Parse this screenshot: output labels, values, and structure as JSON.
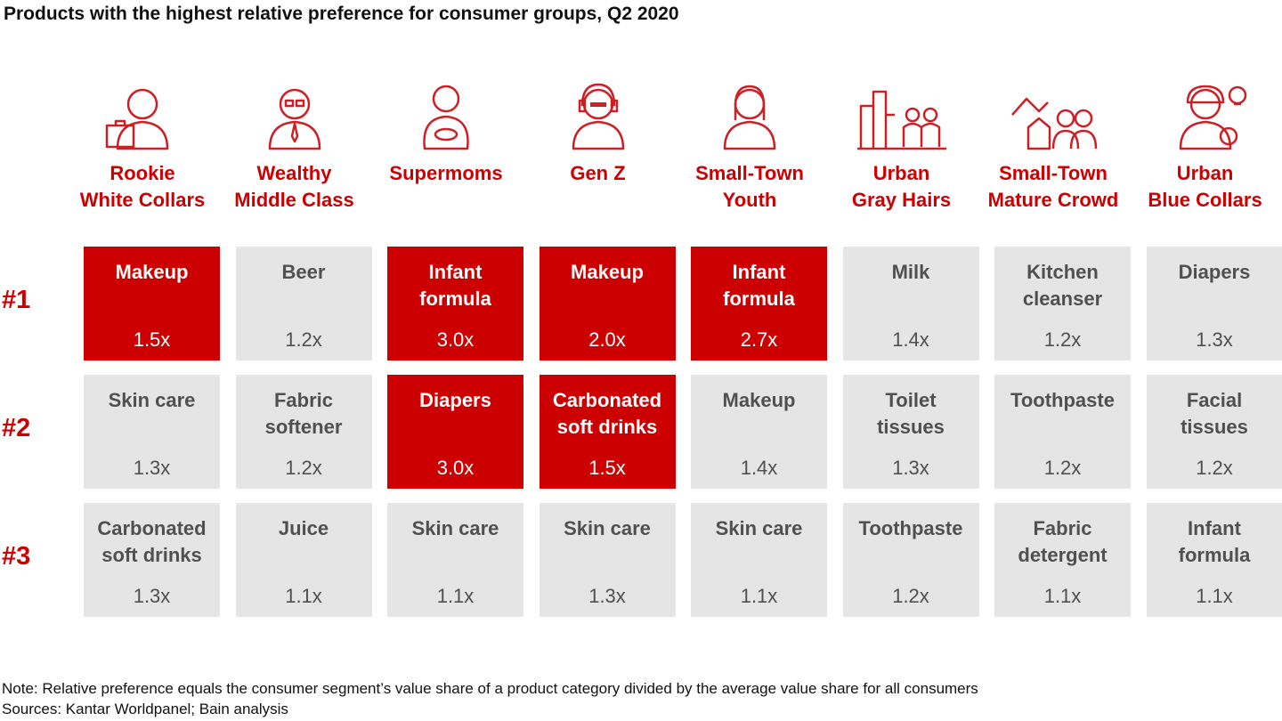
{
  "title": "Products with the highest relative preference for consumer groups, Q2 2020",
  "chart_data": {
    "type": "table",
    "title": "Products with the highest relative preference for consumer groups, Q2 2020",
    "ranks": [
      "#1",
      "#2",
      "#3"
    ],
    "segments": [
      {
        "name": "Rookie\nWhite Collars",
        "icon": "office-worker-briefcase-icon",
        "products": [
          {
            "p": "Makeup",
            "v": "1.5x",
            "hi": true
          },
          {
            "p": "Skin care",
            "v": "1.3x",
            "hi": false
          },
          {
            "p": "Carbonated\nsoft drinks",
            "v": "1.3x",
            "hi": false
          }
        ]
      },
      {
        "name": "Wealthy\nMiddle Class",
        "icon": "man-glasses-tie-icon",
        "products": [
          {
            "p": "Beer",
            "v": "1.2x",
            "hi": false
          },
          {
            "p": "Fabric\nsoftener",
            "v": "1.2x",
            "hi": false
          },
          {
            "p": "Juice",
            "v": "1.1x",
            "hi": false
          }
        ]
      },
      {
        "name": "Supermoms",
        "icon": "mother-baby-icon",
        "products": [
          {
            "p": "Infant\nformula",
            "v": "3.0x",
            "hi": true
          },
          {
            "p": "Diapers",
            "v": "3.0x",
            "hi": true
          },
          {
            "p": "Skin care",
            "v": "1.1x",
            "hi": false
          }
        ]
      },
      {
        "name": "Gen Z",
        "icon": "youth-headphones-icon",
        "products": [
          {
            "p": "Makeup",
            "v": "2.0x",
            "hi": true
          },
          {
            "p": "Carbonated\nsoft drinks",
            "v": "1.5x",
            "hi": true
          },
          {
            "p": "Skin care",
            "v": "1.3x",
            "hi": false
          }
        ]
      },
      {
        "name": "Small-Town\nYouth",
        "icon": "young-woman-icon",
        "products": [
          {
            "p": "Infant\nformula",
            "v": "2.7x",
            "hi": true
          },
          {
            "p": "Makeup",
            "v": "1.4x",
            "hi": false
          },
          {
            "p": "Skin care",
            "v": "1.1x",
            "hi": false
          }
        ]
      },
      {
        "name": "Urban\nGray Hairs",
        "icon": "city-elderly-couple-icon",
        "products": [
          {
            "p": "Milk",
            "v": "1.4x",
            "hi": false
          },
          {
            "p": "Toilet\ntissues",
            "v": "1.3x",
            "hi": false
          },
          {
            "p": "Toothpaste",
            "v": "1.2x",
            "hi": false
          }
        ]
      },
      {
        "name": "Small-Town\nMature Crowd",
        "icon": "house-couple-icon",
        "products": [
          {
            "p": "Kitchen\ncleanser",
            "v": "1.2x",
            "hi": false
          },
          {
            "p": "Toothpaste",
            "v": "1.2x",
            "hi": false
          },
          {
            "p": "Fabric\ndetergent",
            "v": "1.1x",
            "hi": false
          }
        ]
      },
      {
        "name": "Urban\nBlue Collars",
        "icon": "worker-helmet-gear-icon",
        "products": [
          {
            "p": "Diapers",
            "v": "1.3x",
            "hi": false
          },
          {
            "p": "Facial\ntissues",
            "v": "1.2x",
            "hi": false
          },
          {
            "p": "Infant\nformula",
            "v": "1.1x",
            "hi": false
          }
        ]
      }
    ]
  },
  "colors": {
    "highlight": "#cc0000",
    "cell": "#e5e5e5",
    "cell_text": "#505050"
  },
  "note": "Note: Relative preference equals the consumer segment’s value share of a product category divided by the average value share for all consumers",
  "sources": "Sources: Kantar Worldpanel; Bain analysis"
}
